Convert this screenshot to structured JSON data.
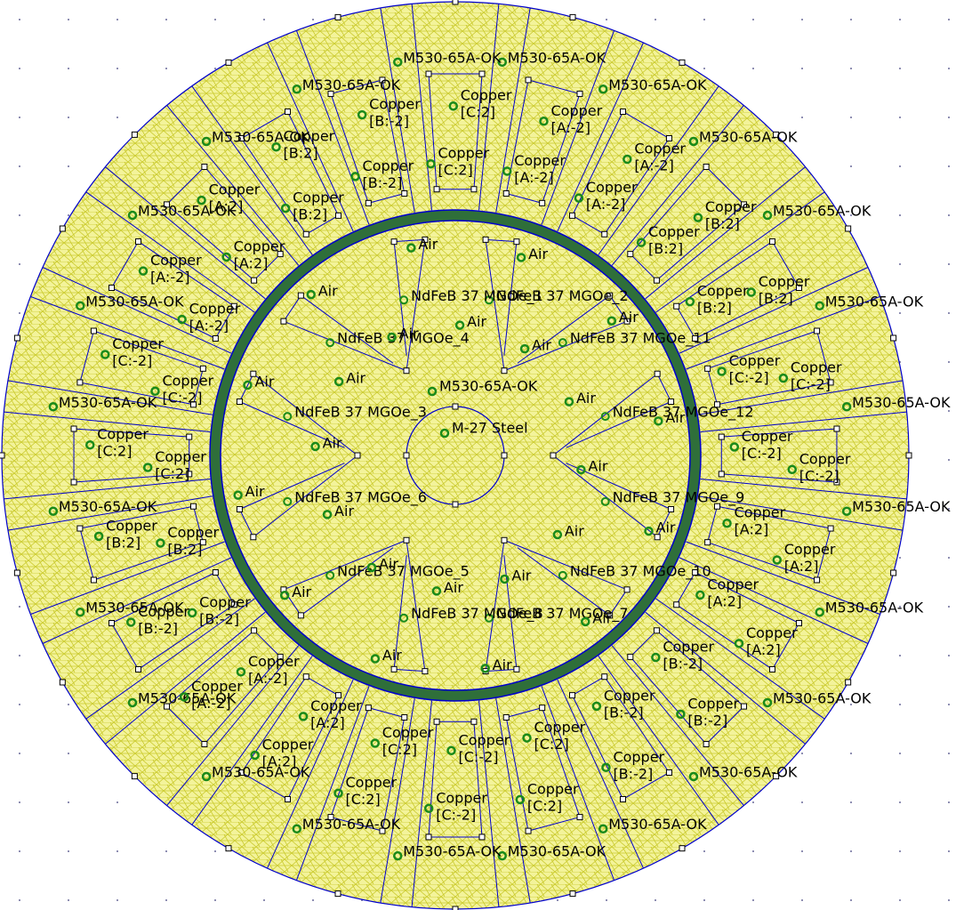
{
  "stator_labels": [
    "M530-65A-OK",
    "M530-65A-OK",
    "M530-65A-OK",
    "M530-65A-OK",
    "M530-65A-OK",
    "M530-65A-OK",
    "M530-65A-OK",
    "M530-65A-OK",
    "M530-65A-OK",
    "M530-65A-OK",
    "M530-65A-OK",
    "M530-65A-OK",
    "M530-65A-OK",
    "M530-65A-OK",
    "M530-65A-OK",
    "M530-65A-OK",
    "M530-65A-OK",
    "M530-65A-OK",
    "M530-65A-OK",
    "M530-65A-OK",
    "M530-65A-OK",
    "M530-65A-OK",
    "M530-65A-OK",
    "M530-65A-OK"
  ],
  "coils": [
    {
      "material": "Copper",
      "circuit": "[C:2]"
    },
    {
      "material": "Copper",
      "circuit": "[C:2]"
    },
    {
      "material": "Copper",
      "circuit": "[A:-2]"
    },
    {
      "material": "Copper",
      "circuit": "[A:-2]"
    },
    {
      "material": "Copper",
      "circuit": "[A:-2]"
    },
    {
      "material": "Copper",
      "circuit": "[A:-2]"
    },
    {
      "material": "Copper",
      "circuit": "[B:2]"
    },
    {
      "material": "Copper",
      "circuit": "[B:2]"
    },
    {
      "material": "Copper",
      "circuit": "[B:2]"
    },
    {
      "material": "Copper",
      "circuit": "[B:2]"
    },
    {
      "material": "Copper",
      "circuit": "[C:-2]"
    },
    {
      "material": "Copper",
      "circuit": "[C:-2]"
    },
    {
      "material": "Copper",
      "circuit": "[C:-2]"
    },
    {
      "material": "Copper",
      "circuit": "[C:-2]"
    },
    {
      "material": "Copper",
      "circuit": "[A:2]"
    },
    {
      "material": "Copper",
      "circuit": "[A:2]"
    },
    {
      "material": "Copper",
      "circuit": "[A:2]"
    },
    {
      "material": "Copper",
      "circuit": "[A:2]"
    },
    {
      "material": "Copper",
      "circuit": "[B:-2]"
    },
    {
      "material": "Copper",
      "circuit": "[B:-2]"
    },
    {
      "material": "Copper",
      "circuit": "[B:-2]"
    },
    {
      "material": "Copper",
      "circuit": "[B:-2]"
    },
    {
      "material": "Copper",
      "circuit": "[C:2]"
    },
    {
      "material": "Copper",
      "circuit": "[C:2]"
    },
    {
      "material": "Copper",
      "circuit": "[C:-2]"
    },
    {
      "material": "Copper",
      "circuit": "[C:-2]"
    },
    {
      "material": "Copper",
      "circuit": "[C:2]"
    },
    {
      "material": "Copper",
      "circuit": "[C:2]"
    },
    {
      "material": "Copper",
      "circuit": "[A:2]"
    },
    {
      "material": "Copper",
      "circuit": "[A:2]"
    },
    {
      "material": "Copper",
      "circuit": "[A:-2]"
    },
    {
      "material": "Copper",
      "circuit": "[A:-2]"
    },
    {
      "material": "Copper",
      "circuit": "[B:-2]"
    },
    {
      "material": "Copper",
      "circuit": "[B:-2]"
    },
    {
      "material": "Copper",
      "circuit": "[B:2]"
    },
    {
      "material": "Copper",
      "circuit": "[B:2]"
    },
    {
      "material": "Copper",
      "circuit": "[C:2]"
    },
    {
      "material": "Copper",
      "circuit": "[C:2]"
    },
    {
      "material": "Copper",
      "circuit": "[C:-2]"
    },
    {
      "material": "Copper",
      "circuit": "[C:-2]"
    },
    {
      "material": "Copper",
      "circuit": "[A:-2]"
    },
    {
      "material": "Copper",
      "circuit": "[A:-2]"
    },
    {
      "material": "Copper",
      "circuit": "[A:2]"
    },
    {
      "material": "Copper",
      "circuit": "[A:2]"
    },
    {
      "material": "Copper",
      "circuit": "[B:2]"
    },
    {
      "material": "Copper",
      "circuit": "[B:2]"
    },
    {
      "material": "Copper",
      "circuit": "[B:-2]"
    },
    {
      "material": "Copper",
      "circuit": "[B:-2]"
    }
  ],
  "magnet_labels": [
    "NdFeB 37 MGOe_2",
    "NdFeB 37 MGOe_11",
    "NdFeB 37 MGOe_12",
    "NdFeB 37 MGOe_9",
    "NdFeB 37 MGOe_10",
    "NdFeB 37 MGOe_7",
    "NdFeB 37 MGOe_8",
    "NdFeB 37 MGOe_5",
    "NdFeB 37 MGOe_6",
    "NdFeB 37 MGOe_3",
    "NdFeB 37 MGOe_4",
    "NdFeB 37 MGOe_1"
  ],
  "air_labels": [
    "Air",
    "Air",
    "Air",
    "Air",
    "Air",
    "Air",
    "Air",
    "Air",
    "Air",
    "Air",
    "Air",
    "Air",
    "Air",
    "Air",
    "Air",
    "Air",
    "Air",
    "Air",
    "Air",
    "Air",
    "Air",
    "Air",
    "Air",
    "Air"
  ],
  "rotor_label": "M530-65A-OK",
  "shaft_label": "M-27 Steel"
}
